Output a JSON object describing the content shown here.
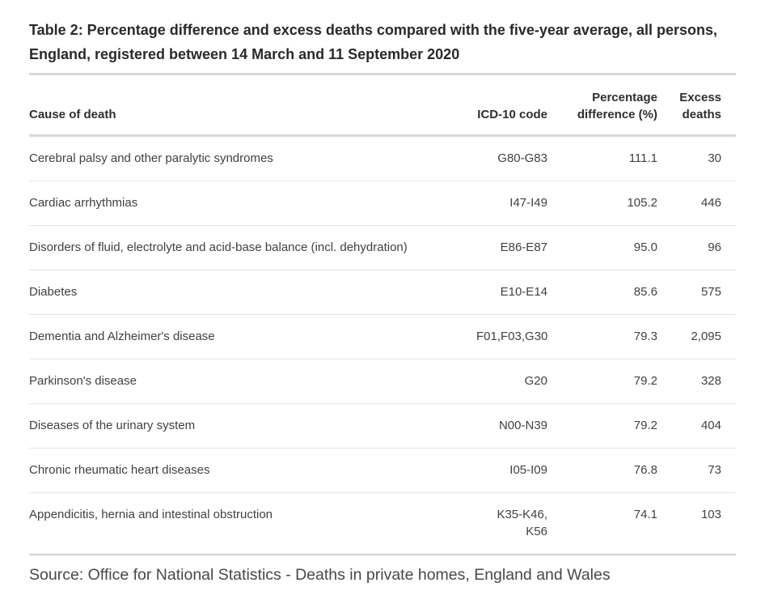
{
  "page": {
    "title": "Table 2: Percentage difference and excess deaths compared with the five-year average, all persons, England, registered between 14 March and 11 September 2020",
    "source": "Source: Office for National Statistics - Deaths in private homes, England and Wales"
  },
  "table": {
    "headers": {
      "cause": "Cause of death",
      "code": "ICD-10 code",
      "pct": "Percentage difference (%)",
      "excess": "Excess deaths"
    },
    "rows": [
      {
        "cause": "Cerebral palsy and other paralytic syndromes",
        "code": "G80-G83",
        "pct": "111.1",
        "excess": "30"
      },
      {
        "cause": "Cardiac arrhythmias",
        "code": "I47-I49",
        "pct": "105.2",
        "excess": "446"
      },
      {
        "cause": "Disorders of fluid, electrolyte and acid-base balance (incl. dehydration)",
        "code": "E86-E87",
        "pct": "95.0",
        "excess": "96"
      },
      {
        "cause": "Diabetes",
        "code": "E10-E14",
        "pct": "85.6",
        "excess": "575"
      },
      {
        "cause": "Dementia and Alzheimer's disease",
        "code": "F01,F03,G30",
        "pct": "79.3",
        "excess": "2,095"
      },
      {
        "cause": "Parkinson's disease",
        "code": "G20",
        "pct": "79.2",
        "excess": "328"
      },
      {
        "cause": "Diseases of the urinary system",
        "code": "N00-N39",
        "pct": "79.2",
        "excess": "404"
      },
      {
        "cause": "Chronic rheumatic heart diseases",
        "code": "I05-I09",
        "pct": "76.8",
        "excess": "73"
      },
      {
        "cause": "Appendicitis, hernia and intestinal obstruction",
        "code": "K35-K46, K56",
        "pct": "74.1",
        "excess": "103"
      }
    ]
  },
  "colors": {
    "background": "#ffffff",
    "title_text": "#2a2a2a",
    "body_text": "#414141",
    "heavy_rule": "#d8d8d8",
    "row_rule": "#e4e4e4",
    "bottom_rule": "#d2d2d2"
  }
}
